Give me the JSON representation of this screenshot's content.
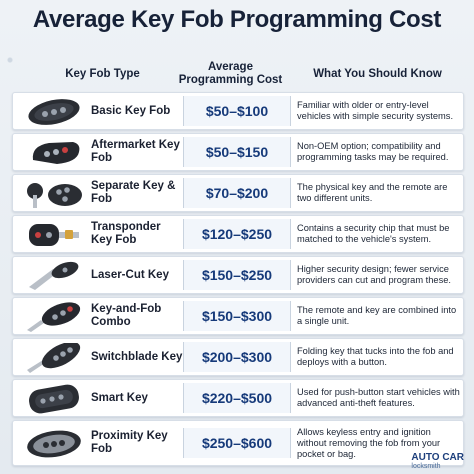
{
  "title": "Average Key Fob Programming Cost",
  "header": {
    "col_type": "Key Fob Type",
    "col_avg_line1": "Average",
    "col_avg_line2": "Programming Cost",
    "col_know": "What You Should Know"
  },
  "rows": [
    {
      "name": "Basic Key Fob",
      "price": "$50–$100",
      "info": "Familiar with older or entry-level vehicles with simple security systems.",
      "icon": "basic-fob-icon"
    },
    {
      "name": "Aftermarket Key Fob",
      "price": "$50–$150",
      "info": "Non-OEM option; compatibility and programming tasks may be required.",
      "icon": "aftermarket-fob-icon"
    },
    {
      "name": "Separate Key & Fob",
      "price": "$70–$200",
      "info": "The physical key and the remote are two different units.",
      "icon": "separate-key-fob-icon"
    },
    {
      "name": "Transponder Key Fob",
      "price": "$120–$250",
      "info": "Contains a security chip that must be matched to the vehicle's system.",
      "icon": "transponder-key-icon"
    },
    {
      "name": "Laser-Cut Key",
      "price": "$150–$250",
      "info": "Higher security design; fewer service providers can cut and program these.",
      "icon": "laser-cut-key-icon"
    },
    {
      "name": "Key-and-Fob Combo",
      "price": "$150–$300",
      "info": "The remote and key are combined into a single unit.",
      "icon": "key-fob-combo-icon"
    },
    {
      "name": "Switchblade Key",
      "price": "$200–$300",
      "info": "Folding key that tucks into the fob and deploys with a button.",
      "icon": "switchblade-key-icon"
    },
    {
      "name": "Smart Key",
      "price": "$220–$500",
      "info": "Used for push-button start vehicles with advanced anti-theft features.",
      "icon": "smart-key-icon"
    },
    {
      "name": "Proximity Key Fob",
      "price": "$250–$600",
      "info": "Allows keyless entry and ignition without removing the fob from your pocket or bag.",
      "icon": "proximity-fob-icon"
    }
  ],
  "logo": {
    "line1": "AUTO CAR",
    "line2": "locksmith"
  }
}
